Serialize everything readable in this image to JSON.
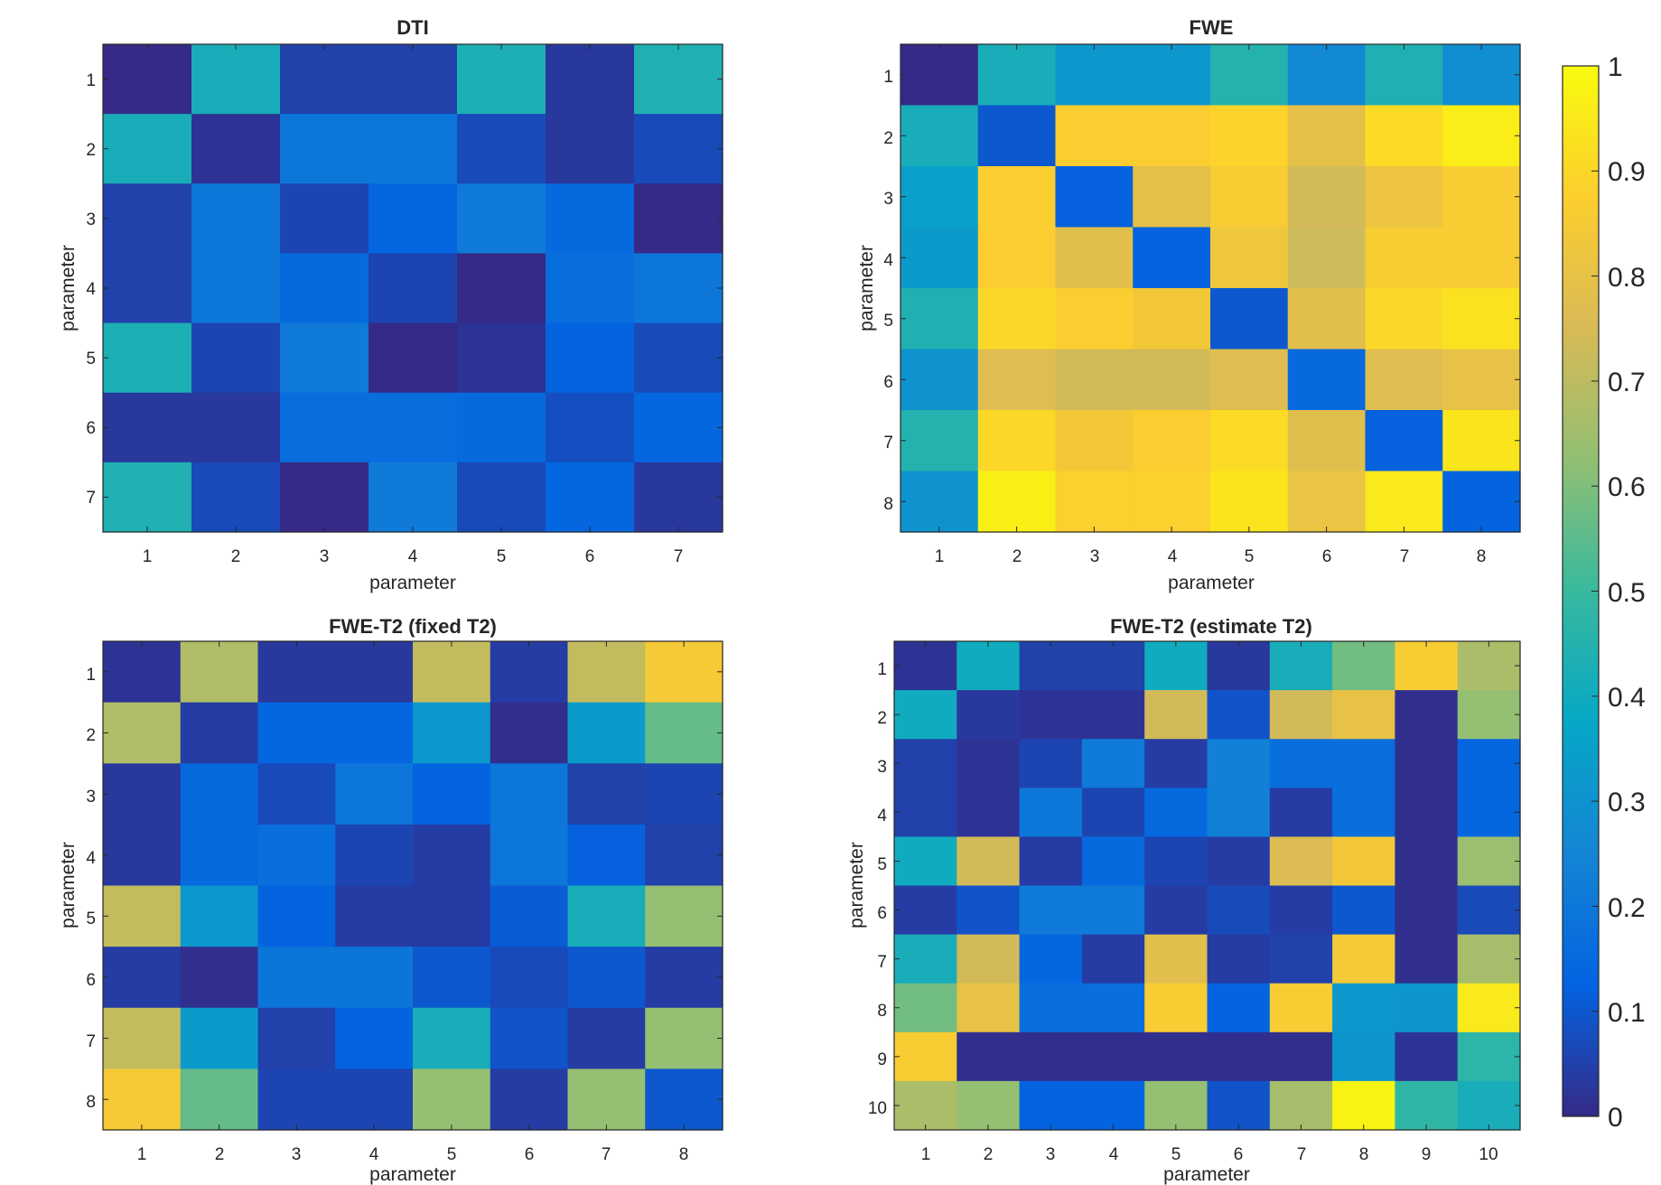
{
  "colormap": {
    "name": "parula",
    "stops": [
      "#352a87",
      "#0363e1",
      "#1485d4",
      "#06a7c6",
      "#38b99e",
      "#92bf73",
      "#d9ba56",
      "#fcce2e",
      "#f9fb0e"
    ]
  },
  "colorbar": {
    "min": 0,
    "max": 1,
    "ticks": [
      0,
      0.1,
      0.2,
      0.3,
      0.4,
      0.5,
      0.6,
      0.7,
      0.8,
      0.9,
      1
    ],
    "tick_labels": [
      "0",
      "0.1",
      "0.2",
      "0.3",
      "0.4",
      "0.5",
      "0.6",
      "0.7",
      "0.8",
      "0.9",
      "1"
    ]
  },
  "chart_data": [
    {
      "type": "heatmap",
      "title": "DTI",
      "xlabel": "parameter",
      "ylabel": "parameter",
      "x_ticks": [
        "1",
        "2",
        "3",
        "4",
        "5",
        "6",
        "7"
      ],
      "y_ticks": [
        "1",
        "2",
        "3",
        "4",
        "5",
        "6",
        "7"
      ],
      "clim": [
        0,
        1
      ],
      "values": [
        [
          0.0,
          0.42,
          0.05,
          0.05,
          0.43,
          0.03,
          0.44
        ],
        [
          0.42,
          0.02,
          0.2,
          0.2,
          0.07,
          0.03,
          0.07
        ],
        [
          0.05,
          0.2,
          0.06,
          0.14,
          0.21,
          0.15,
          0.0
        ],
        [
          0.05,
          0.2,
          0.15,
          0.06,
          0.0,
          0.16,
          0.2
        ],
        [
          0.43,
          0.06,
          0.21,
          0.0,
          0.02,
          0.13,
          0.07
        ],
        [
          0.03,
          0.03,
          0.16,
          0.16,
          0.15,
          0.08,
          0.14
        ],
        [
          0.44,
          0.07,
          0.0,
          0.21,
          0.07,
          0.14,
          0.03
        ]
      ]
    },
    {
      "type": "heatmap",
      "title": "FWE",
      "xlabel": "parameter",
      "ylabel": "parameter",
      "x_ticks": [
        "1",
        "2",
        "3",
        "4",
        "5",
        "6",
        "7",
        "8"
      ],
      "y_ticks": [
        "1",
        "2",
        "3",
        "4",
        "5",
        "6",
        "7",
        "8"
      ],
      "clim": [
        0,
        1
      ],
      "values": [
        [
          0.0,
          0.42,
          0.32,
          0.32,
          0.45,
          0.26,
          0.44,
          0.28
        ],
        [
          0.42,
          0.1,
          0.87,
          0.87,
          0.89,
          0.79,
          0.91,
          0.96
        ],
        [
          0.35,
          0.87,
          0.12,
          0.79,
          0.86,
          0.74,
          0.82,
          0.86
        ],
        [
          0.33,
          0.87,
          0.78,
          0.13,
          0.83,
          0.73,
          0.86,
          0.86
        ],
        [
          0.44,
          0.9,
          0.87,
          0.84,
          0.1,
          0.78,
          0.9,
          0.93
        ],
        [
          0.3,
          0.77,
          0.74,
          0.74,
          0.77,
          0.15,
          0.77,
          0.8
        ],
        [
          0.45,
          0.9,
          0.84,
          0.87,
          0.91,
          0.78,
          0.12,
          0.94
        ],
        [
          0.3,
          0.97,
          0.88,
          0.88,
          0.94,
          0.81,
          0.95,
          0.13
        ]
      ]
    },
    {
      "type": "heatmap",
      "title": "FWE-T2 (fixed T2)",
      "xlabel": "parameter",
      "ylabel": "parameter",
      "x_ticks": [
        "1",
        "2",
        "3",
        "4",
        "5",
        "6",
        "7",
        "8"
      ],
      "y_ticks": [
        "1",
        "2",
        "3",
        "4",
        "5",
        "6",
        "7",
        "8"
      ],
      "clim": [
        0,
        1
      ],
      "values": [
        [
          0.02,
          0.68,
          0.03,
          0.03,
          0.71,
          0.04,
          0.71,
          0.85
        ],
        [
          0.68,
          0.04,
          0.14,
          0.14,
          0.32,
          0.01,
          0.33,
          0.56
        ],
        [
          0.03,
          0.15,
          0.07,
          0.2,
          0.13,
          0.2,
          0.05,
          0.06
        ],
        [
          0.03,
          0.15,
          0.17,
          0.06,
          0.04,
          0.2,
          0.12,
          0.05
        ],
        [
          0.71,
          0.32,
          0.13,
          0.04,
          0.04,
          0.11,
          0.42,
          0.63
        ],
        [
          0.04,
          0.01,
          0.19,
          0.19,
          0.1,
          0.07,
          0.1,
          0.04
        ],
        [
          0.71,
          0.33,
          0.05,
          0.13,
          0.42,
          0.09,
          0.04,
          0.63
        ],
        [
          0.85,
          0.56,
          0.06,
          0.06,
          0.63,
          0.04,
          0.63,
          0.1
        ]
      ]
    },
    {
      "type": "heatmap",
      "title": "FWE-T2 (estimate T2)",
      "xlabel": "parameter",
      "ylabel": "parameter",
      "x_ticks": [
        "1",
        "2",
        "3",
        "4",
        "5",
        "6",
        "7",
        "8",
        "9",
        "10"
      ],
      "y_ticks": [
        "1",
        "2",
        "3",
        "4",
        "5",
        "6",
        "7",
        "8",
        "9",
        "10"
      ],
      "clim": [
        0,
        1
      ],
      "values": [
        [
          0.02,
          0.4,
          0.05,
          0.05,
          0.4,
          0.03,
          0.42,
          0.58,
          0.86,
          0.67
        ],
        [
          0.4,
          0.03,
          0.02,
          0.02,
          0.74,
          0.09,
          0.74,
          0.8,
          0.01,
          0.63
        ],
        [
          0.05,
          0.02,
          0.06,
          0.21,
          0.04,
          0.23,
          0.17,
          0.17,
          0.01,
          0.14
        ],
        [
          0.05,
          0.02,
          0.2,
          0.06,
          0.15,
          0.23,
          0.04,
          0.17,
          0.01,
          0.14
        ],
        [
          0.4,
          0.74,
          0.04,
          0.15,
          0.06,
          0.04,
          0.76,
          0.84,
          0.01,
          0.64
        ],
        [
          0.04,
          0.09,
          0.21,
          0.21,
          0.04,
          0.07,
          0.04,
          0.1,
          0.01,
          0.07
        ],
        [
          0.42,
          0.74,
          0.14,
          0.04,
          0.78,
          0.04,
          0.05,
          0.85,
          0.01,
          0.66
        ],
        [
          0.58,
          0.8,
          0.17,
          0.17,
          0.86,
          0.13,
          0.86,
          0.32,
          0.31,
          0.95
        ],
        [
          0.86,
          0.01,
          0.01,
          0.01,
          0.01,
          0.01,
          0.01,
          0.31,
          0.02,
          0.47
        ],
        [
          0.67,
          0.63,
          0.13,
          0.13,
          0.63,
          0.09,
          0.66,
          0.98,
          0.48,
          0.42
        ]
      ]
    }
  ]
}
